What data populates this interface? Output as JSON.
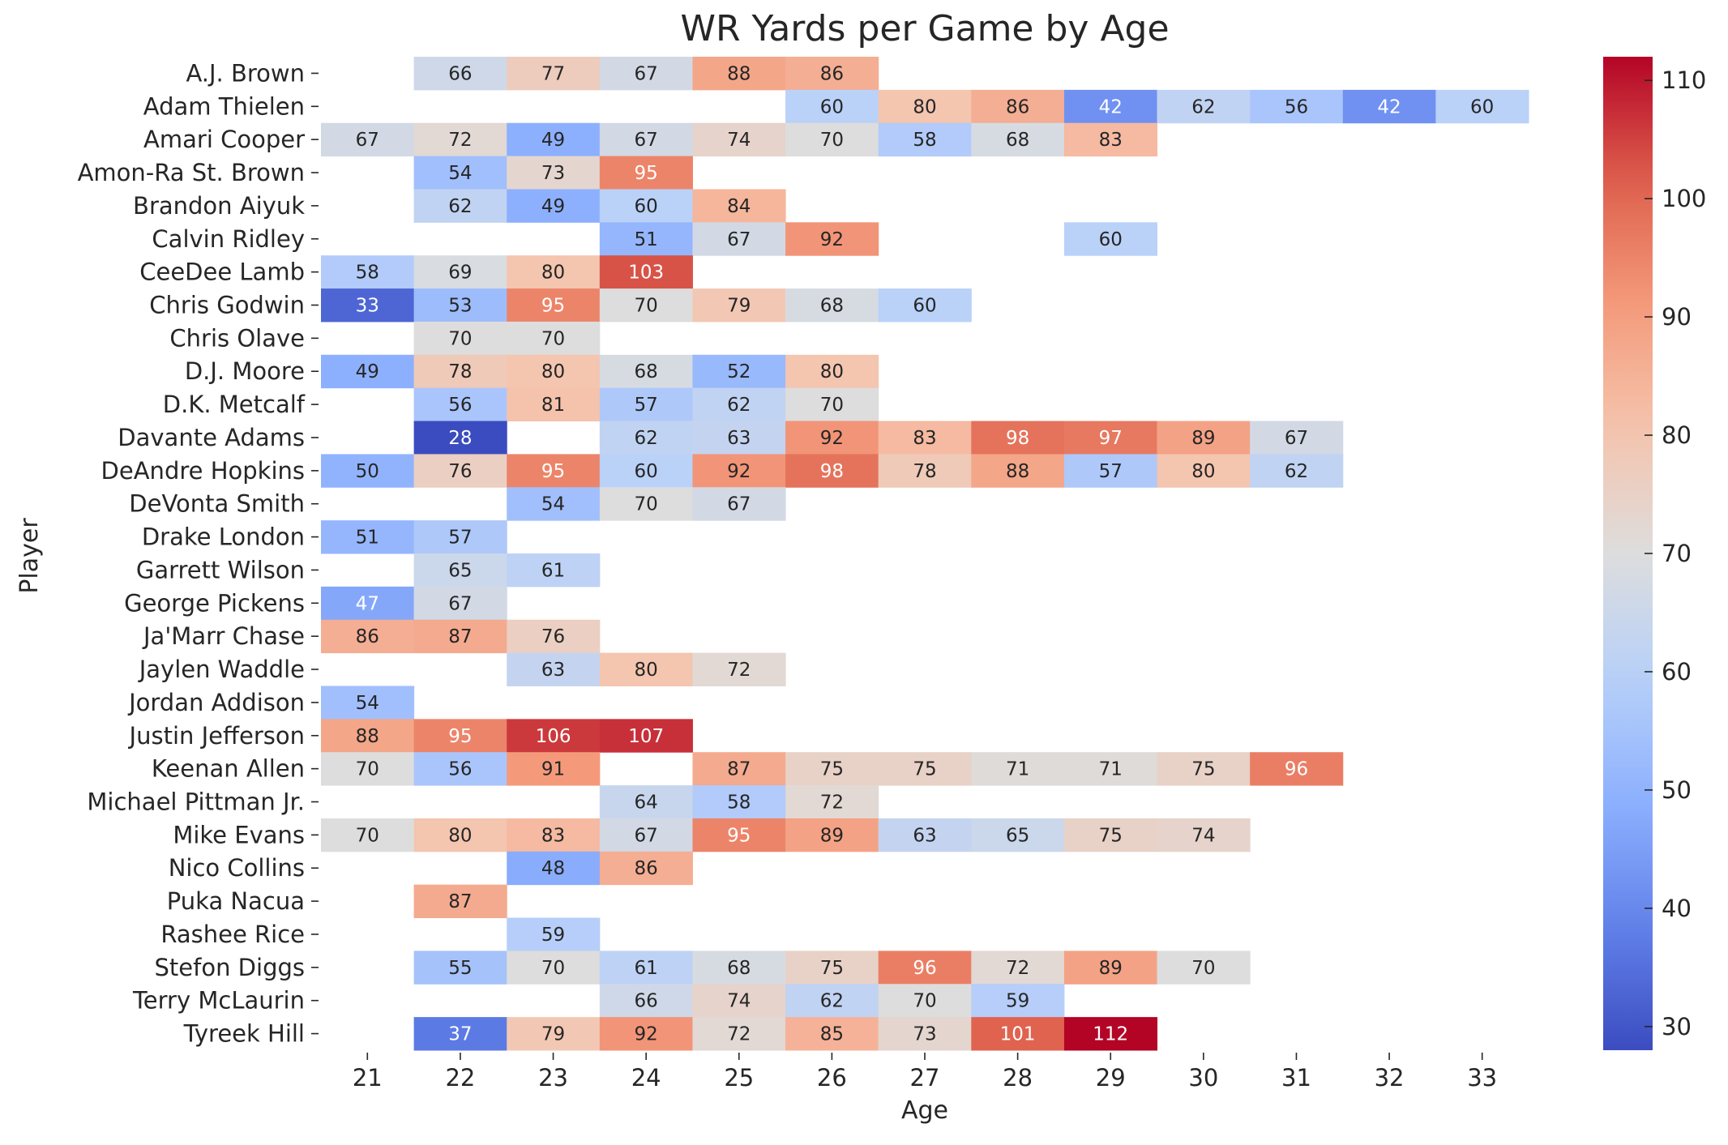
{
  "chart_data": {
    "type": "heatmap",
    "title": "WR Yards per Game by Age",
    "xlabel": "Age",
    "ylabel": "Player",
    "colormap": "coolwarm",
    "vmin": 28,
    "vmax": 112,
    "colorbar_ticks": [
      "30",
      "40",
      "50",
      "60",
      "70",
      "80",
      "90",
      "100",
      "110"
    ],
    "colorbar_tick_values": [
      30,
      40,
      50,
      60,
      70,
      80,
      90,
      100,
      110
    ],
    "x": [
      "21",
      "22",
      "23",
      "24",
      "25",
      "26",
      "27",
      "28",
      "29",
      "30",
      "31",
      "32",
      "33"
    ],
    "y": [
      "A.J. Brown",
      "Adam Thielen",
      "Amari Cooper",
      "Amon-Ra St. Brown",
      "Brandon Aiyuk",
      "Calvin Ridley",
      "CeeDee Lamb",
      "Chris Godwin",
      "Chris Olave",
      "D.J. Moore",
      "D.K. Metcalf",
      "Davante Adams",
      "DeAndre Hopkins",
      "DeVonta Smith",
      "Drake London",
      "Garrett Wilson",
      "George Pickens",
      "Ja'Marr Chase",
      "Jaylen Waddle",
      "Jordan Addison",
      "Justin Jefferson",
      "Keenan Allen",
      "Michael Pittman Jr.",
      "Mike Evans",
      "Nico Collins",
      "Puka Nacua",
      "Rashee Rice",
      "Stefon Diggs",
      "Terry McLaurin",
      "Tyreek Hill"
    ],
    "values": [
      [
        null,
        66,
        77,
        67,
        88,
        86,
        null,
        null,
        null,
        null,
        null,
        null,
        null
      ],
      [
        null,
        null,
        null,
        null,
        null,
        60,
        80,
        86,
        42,
        62,
        56,
        42,
        60
      ],
      [
        67,
        72,
        49,
        67,
        74,
        70,
        58,
        68,
        83,
        null,
        null,
        null,
        null
      ],
      [
        null,
        54,
        73,
        95,
        null,
        null,
        null,
        null,
        null,
        null,
        null,
        null,
        null
      ],
      [
        null,
        62,
        49,
        60,
        84,
        null,
        null,
        null,
        null,
        null,
        null,
        null,
        null
      ],
      [
        null,
        null,
        null,
        51,
        67,
        92,
        null,
        null,
        60,
        null,
        null,
        null,
        null
      ],
      [
        58,
        69,
        80,
        103,
        null,
        null,
        null,
        null,
        null,
        null,
        null,
        null,
        null
      ],
      [
        33,
        53,
        95,
        70,
        79,
        68,
        60,
        null,
        null,
        null,
        null,
        null,
        null
      ],
      [
        null,
        70,
        70,
        null,
        null,
        null,
        null,
        null,
        null,
        null,
        null,
        null,
        null
      ],
      [
        49,
        78,
        80,
        68,
        52,
        80,
        null,
        null,
        null,
        null,
        null,
        null,
        null
      ],
      [
        null,
        56,
        81,
        57,
        62,
        70,
        null,
        null,
        null,
        null,
        null,
        null,
        null
      ],
      [
        null,
        28,
        null,
        62,
        63,
        92,
        83,
        98,
        97,
        89,
        67,
        null,
        null
      ],
      [
        50,
        76,
        95,
        60,
        92,
        98,
        78,
        88,
        57,
        80,
        62,
        null,
        null
      ],
      [
        null,
        null,
        54,
        70,
        67,
        null,
        null,
        null,
        null,
        null,
        null,
        null,
        null
      ],
      [
        51,
        57,
        null,
        null,
        null,
        null,
        null,
        null,
        null,
        null,
        null,
        null,
        null
      ],
      [
        null,
        65,
        61,
        null,
        null,
        null,
        null,
        null,
        null,
        null,
        null,
        null,
        null
      ],
      [
        47,
        67,
        null,
        null,
        null,
        null,
        null,
        null,
        null,
        null,
        null,
        null,
        null
      ],
      [
        86,
        87,
        76,
        null,
        null,
        null,
        null,
        null,
        null,
        null,
        null,
        null,
        null
      ],
      [
        null,
        null,
        63,
        80,
        72,
        null,
        null,
        null,
        null,
        null,
        null,
        null,
        null
      ],
      [
        54,
        null,
        null,
        null,
        null,
        null,
        null,
        null,
        null,
        null,
        null,
        null,
        null
      ],
      [
        88,
        95,
        106,
        107,
        null,
        null,
        null,
        null,
        null,
        null,
        null,
        null,
        null
      ],
      [
        70,
        56,
        91,
        null,
        87,
        75,
        75,
        71,
        71,
        75,
        96,
        null,
        null
      ],
      [
        null,
        null,
        null,
        64,
        58,
        72,
        null,
        null,
        null,
        null,
        null,
        null,
        null
      ],
      [
        70,
        80,
        83,
        67,
        95,
        89,
        63,
        65,
        75,
        74,
        null,
        null,
        null
      ],
      [
        null,
        null,
        48,
        86,
        null,
        null,
        null,
        null,
        null,
        null,
        null,
        null,
        null
      ],
      [
        null,
        87,
        null,
        null,
        null,
        null,
        null,
        null,
        null,
        null,
        null,
        null,
        null
      ],
      [
        null,
        null,
        59,
        null,
        null,
        null,
        null,
        null,
        null,
        null,
        null,
        null,
        null
      ],
      [
        null,
        55,
        70,
        61,
        68,
        75,
        96,
        72,
        89,
        70,
        null,
        null,
        null
      ],
      [
        null,
        null,
        null,
        66,
        74,
        62,
        70,
        59,
        null,
        null,
        null,
        null,
        null
      ],
      [
        null,
        37,
        79,
        92,
        72,
        85,
        73,
        101,
        112,
        null,
        null,
        null,
        null
      ]
    ]
  }
}
